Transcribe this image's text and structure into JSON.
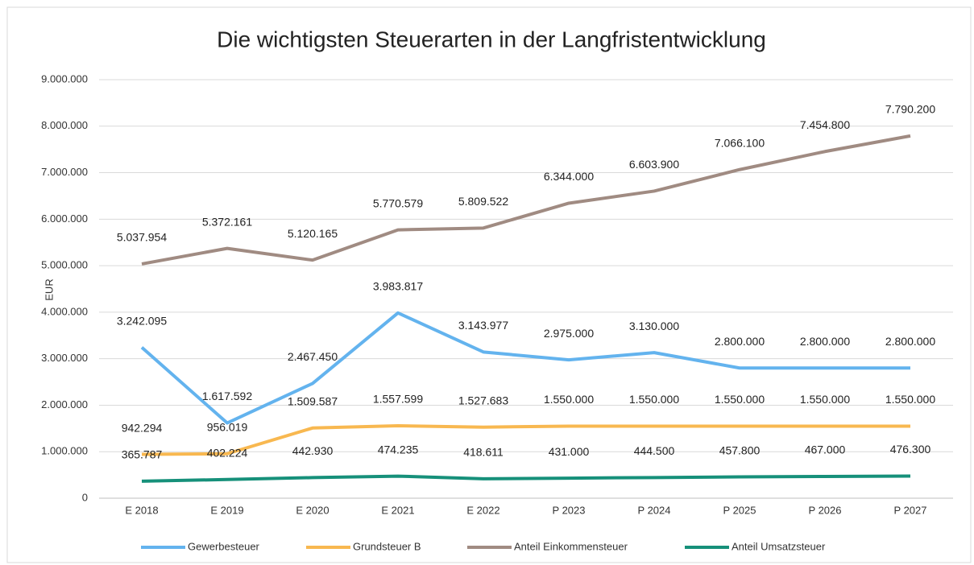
{
  "chart_data": {
    "type": "line",
    "title": "Die wichtigsten Steuerarten in der Langfristentwicklung",
    "y_label": "EUR",
    "categories": [
      "E 2018",
      "E 2019",
      "E 2020",
      "E 2021",
      "E 2022",
      "P 2023",
      "P 2024",
      "P 2025",
      "P 2026",
      "P 2027"
    ],
    "series": [
      {
        "name": "Gewerbesteuer",
        "color": "#63b3ee",
        "values": [
          3242095,
          1617592,
          2467450,
          3983817,
          3143977,
          2975000,
          3130000,
          2800000,
          2800000,
          2800000
        ],
        "value_labels": [
          "3.242.095",
          "1.617.592",
          "2.467.450",
          "3.983.817",
          "3.143.977",
          "2.975.000",
          "3.130.000",
          "2.800.000",
          "2.800.000",
          "2.800.000"
        ]
      },
      {
        "name": "Grundsteuer B",
        "color": "#f8b850",
        "values": [
          942294,
          956019,
          1509587,
          1557599,
          1527683,
          1550000,
          1550000,
          1550000,
          1550000,
          1550000
        ],
        "value_labels": [
          "942.294",
          "956.019",
          "1.509.587",
          "1.557.599",
          "1.527.683",
          "1.550.000",
          "1.550.000",
          "1.550.000",
          "1.550.000",
          "1.550.000"
        ]
      },
      {
        "name": "Anteil Einkommensteuer",
        "color": "#a08b82",
        "values": [
          5037954,
          5372161,
          5120165,
          5770579,
          5809522,
          6344000,
          6603900,
          7066100,
          7454800,
          7790200
        ],
        "value_labels": [
          "5.037.954",
          "5.372.161",
          "5.120.165",
          "5.770.579",
          "5.809.522",
          "6.344.000",
          "6.603.900",
          "7.066.100",
          "7.454.800",
          "7.790.200"
        ]
      },
      {
        "name": "Anteil Umsatzsteuer",
        "color": "#16907a",
        "values": [
          365787,
          402224,
          442930,
          474235,
          418611,
          431000,
          444500,
          457800,
          467000,
          476300
        ],
        "value_labels": [
          "365.787",
          "402.224",
          "442.930",
          "474.235",
          "418.611",
          "431.000",
          "444.500",
          "457.800",
          "467.000",
          "476.300"
        ]
      }
    ],
    "ylim": [
      0,
      9000000
    ],
    "yticks": [
      0,
      {
        "value": 1000000,
        "label": "1.000.000"
      },
      {
        "value": 2000000,
        "label": "2.000.000"
      },
      {
        "value": 3000000,
        "label": "3.000.000"
      },
      {
        "value": 4000000,
        "label": "4.000.000"
      },
      {
        "value": 5000000,
        "label": "5.000.000"
      },
      {
        "value": 6000000,
        "label": "6.000.000"
      },
      {
        "value": 7000000,
        "label": "7.000.000"
      },
      {
        "value": 8000000,
        "label": "8.000.000"
      },
      {
        "value": 9000000,
        "label": "9.000.000"
      }
    ],
    "grid": true,
    "legend": "bottom"
  }
}
